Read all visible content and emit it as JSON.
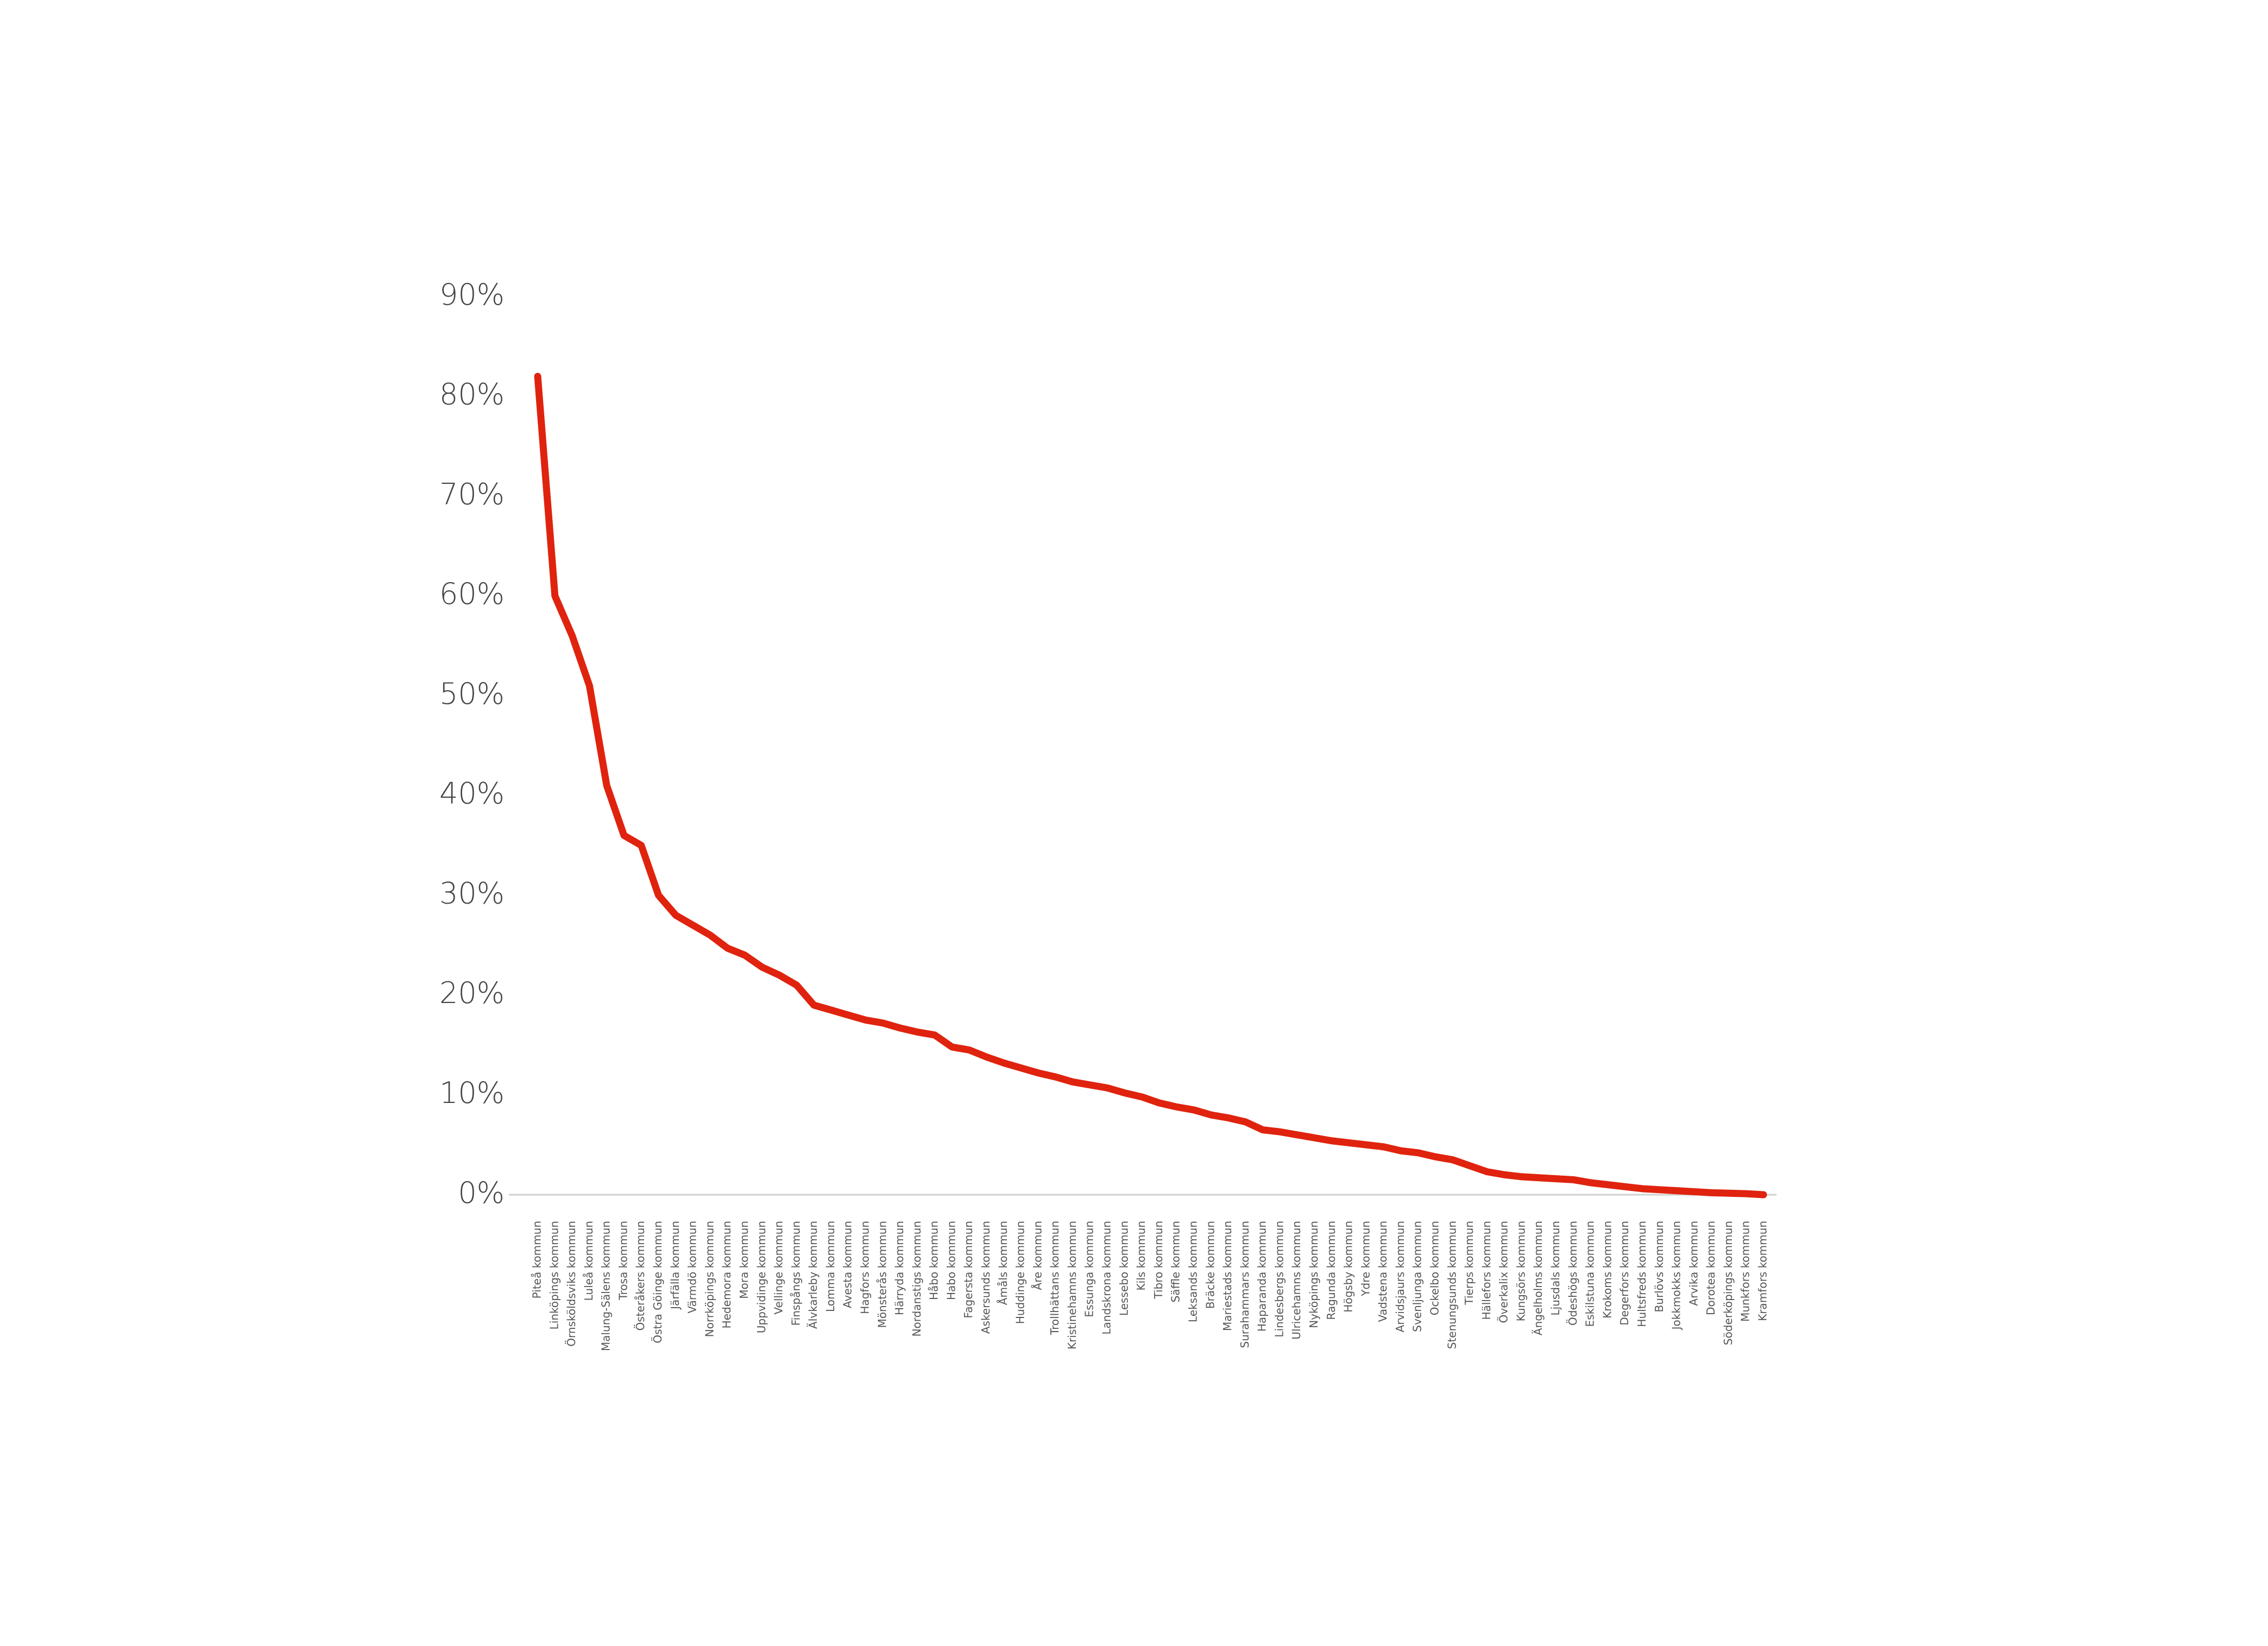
{
  "chart_data": {
    "type": "line",
    "categories": [
      "Piteå kommun",
      "Linköpings kommun",
      "Örnsköldsviks kommun",
      "Luleå kommun",
      "Malung-Sälens kommun",
      "Trosa kommun",
      "Österåkers kommun",
      "Östra Göinge kommun",
      "Järfälla kommun",
      "Värmdö kommun",
      "Norrköpings kommun",
      "Hedemora kommun",
      "Mora kommun",
      "Uppvidinge kommun",
      "Vellinge kommun",
      "Finspångs kommun",
      "Älvkarleby kommun",
      "Lomma kommun",
      "Avesta kommun",
      "Hagfors kommun",
      "Mönsterås kommun",
      "Härryda kommun",
      "Nordanstigs kommun",
      "Håbo kommun",
      "Habo kommun",
      "Fagersta kommun",
      "Askersunds kommun",
      "Åmåls kommun",
      "Huddinge kommun",
      "Åre kommun",
      "Trollhättans kommun",
      "Kristinehamns kommun",
      "Essunga kommun",
      "Landskrona kommun",
      "Lessebo kommun",
      "Kils kommun",
      "Tibro kommun",
      "Säffle kommun",
      "Leksands kommun",
      "Bräcke kommun",
      "Mariestads kommun",
      "Surahammars kommun",
      "Haparanda kommun",
      "Lindesbergs kommun",
      "Ulricehamns kommun",
      "Nyköpings kommun",
      "Ragunda kommun",
      "Högsby kommun",
      "Ydre kommun",
      "Vadstena kommun",
      "Arvidsjaurs kommun",
      "Svenljunga kommun",
      "Ockelbo kommun",
      "Stenungsunds kommun",
      "Tierps kommun",
      "Hällefors kommun",
      "Överkalix kommun",
      "Kungsörs kommun",
      "Ängelholms kommun",
      "Ljusdals kommun",
      "Ödeshögs kommun",
      "Eskilstuna kommun",
      "Krokoms kommun",
      "Degerfors kommun",
      "Hultsfreds kommun",
      "Burlövs kommun",
      "Jokkmokks kommun",
      "Arvika kommun",
      "Dorotea kommun",
      "Söderköpings kommun",
      "Munkfors kommun",
      "Kramfors kommun"
    ],
    "series": [
      {
        "color": "#e0230e",
        "values": [
          82,
          60,
          56,
          51,
          41,
          36,
          35,
          30,
          28,
          27,
          26,
          24.7,
          24,
          22.8,
          22,
          21,
          19,
          18.5,
          18,
          17.5,
          17.2,
          16.7,
          16.3,
          16,
          14.8,
          14.5,
          13.8,
          13.2,
          12.7,
          12.2,
          11.8,
          11.3,
          11,
          10.7,
          10.2,
          9.8,
          9.2,
          8.8,
          8.5,
          8,
          7.7,
          7.3,
          6.5,
          6.3,
          6,
          5.7,
          5.4,
          5.2,
          5,
          4.8,
          4.4,
          4.2,
          3.8,
          3.5,
          2.9,
          2.3,
          2,
          1.8,
          1.7,
          1.6,
          1.5,
          1.2,
          1,
          0.8,
          0.6,
          0.5,
          0.4,
          0.3,
          0.2,
          0.15,
          0.1,
          0
        ]
      }
    ],
    "ylim": [
      0,
      90
    ],
    "yticks": [
      {
        "value": 0,
        "label": "0%"
      },
      {
        "value": 10,
        "label": "10%"
      },
      {
        "value": 20,
        "label": "20%"
      },
      {
        "value": 30,
        "label": "30%"
      },
      {
        "value": 40,
        "label": "40%"
      },
      {
        "value": 50,
        "label": "50%"
      },
      {
        "value": 60,
        "label": "60%"
      },
      {
        "value": 70,
        "label": "70%"
      },
      {
        "value": 80,
        "label": "80%"
      },
      {
        "value": 90,
        "label": "90%"
      }
    ],
    "grid": false
  }
}
